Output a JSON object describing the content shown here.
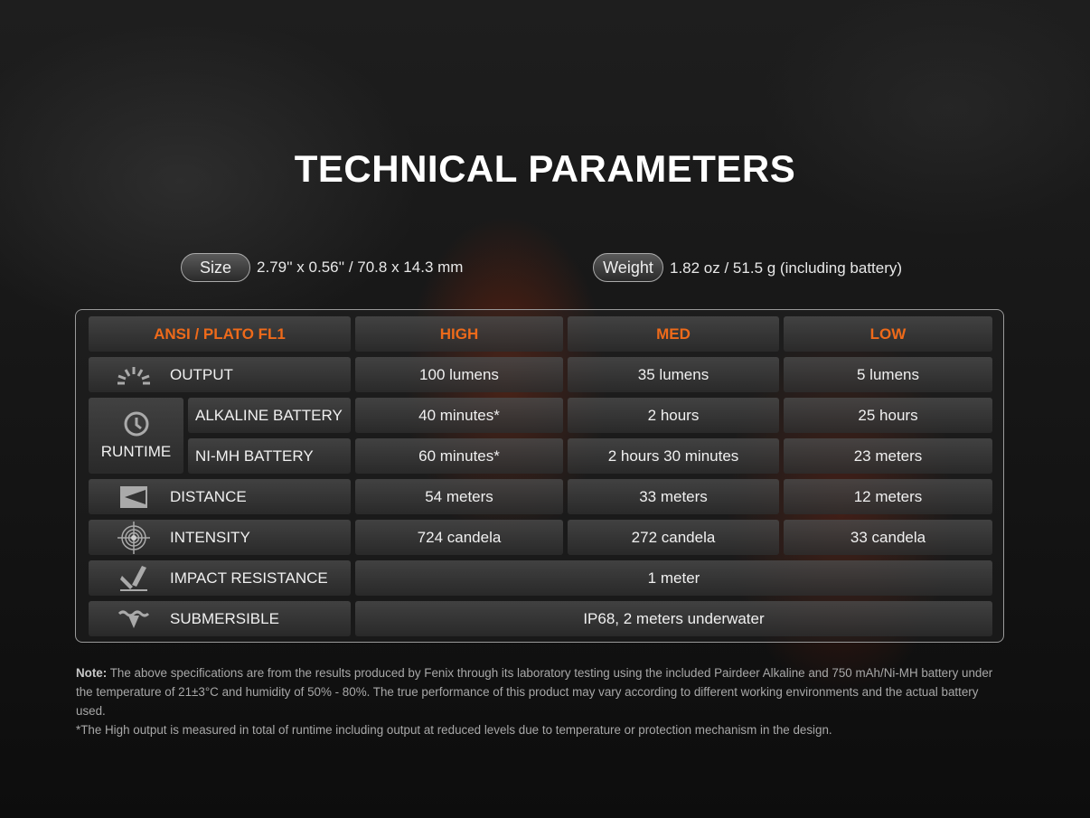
{
  "title": "TECHNICAL PARAMETERS",
  "size": {
    "label": "Size",
    "value": "2.79'' x 0.56'' / 70.8 x 14.3 mm"
  },
  "weight": {
    "label": "Weight",
    "value": "1.82 oz / 51.5 g (including battery)"
  },
  "table": {
    "header": [
      "ANSI / PLATO FL1",
      "HIGH",
      "MED",
      "LOW"
    ],
    "accent_color": "#ee6a1a",
    "output": {
      "label": "OUTPUT",
      "icon": "sunburst-icon",
      "values": [
        "100 lumens",
        "35 lumens",
        "5 lumens"
      ]
    },
    "runtime": {
      "label": "RUNTIME",
      "icon": "clock-icon",
      "alkaline": {
        "label": "ALKALINE BATTERY",
        "values": [
          "40 minutes*",
          "2 hours",
          "25 hours"
        ]
      },
      "nimh": {
        "label": "NI-MH BATTERY",
        "values": [
          "60 minutes*",
          "2 hours 30 minutes",
          "23 meters"
        ]
      }
    },
    "distance": {
      "label": "DISTANCE",
      "icon": "beam-distance-icon",
      "values": [
        "54 meters",
        "33 meters",
        "12 meters"
      ]
    },
    "intensity": {
      "label": "INTENSITY",
      "icon": "target-icon",
      "values": [
        "724 candela",
        "272 candela",
        "33 candela"
      ]
    },
    "impact": {
      "label": "IMPACT RESISTANCE",
      "icon": "impact-icon",
      "value": "1 meter"
    },
    "submersible": {
      "label": "SUBMERSIBLE",
      "icon": "water-icon",
      "value": "IP68, 2 meters underwater"
    }
  },
  "note": {
    "prefix": "Note:",
    "text": " The above specifications are from the results produced by Fenix through its laboratory testing using the included Pairdeer Alkaline and 750 mAh/Ni-MH battery under the temperature of 21±3°C and humidity of 50% - 80%. The true performance of this product may vary according to different working environments and the actual battery used.",
    "footnote": "*The High output is measured in total of runtime including output at reduced levels due to temperature or protection mechanism in the design."
  }
}
